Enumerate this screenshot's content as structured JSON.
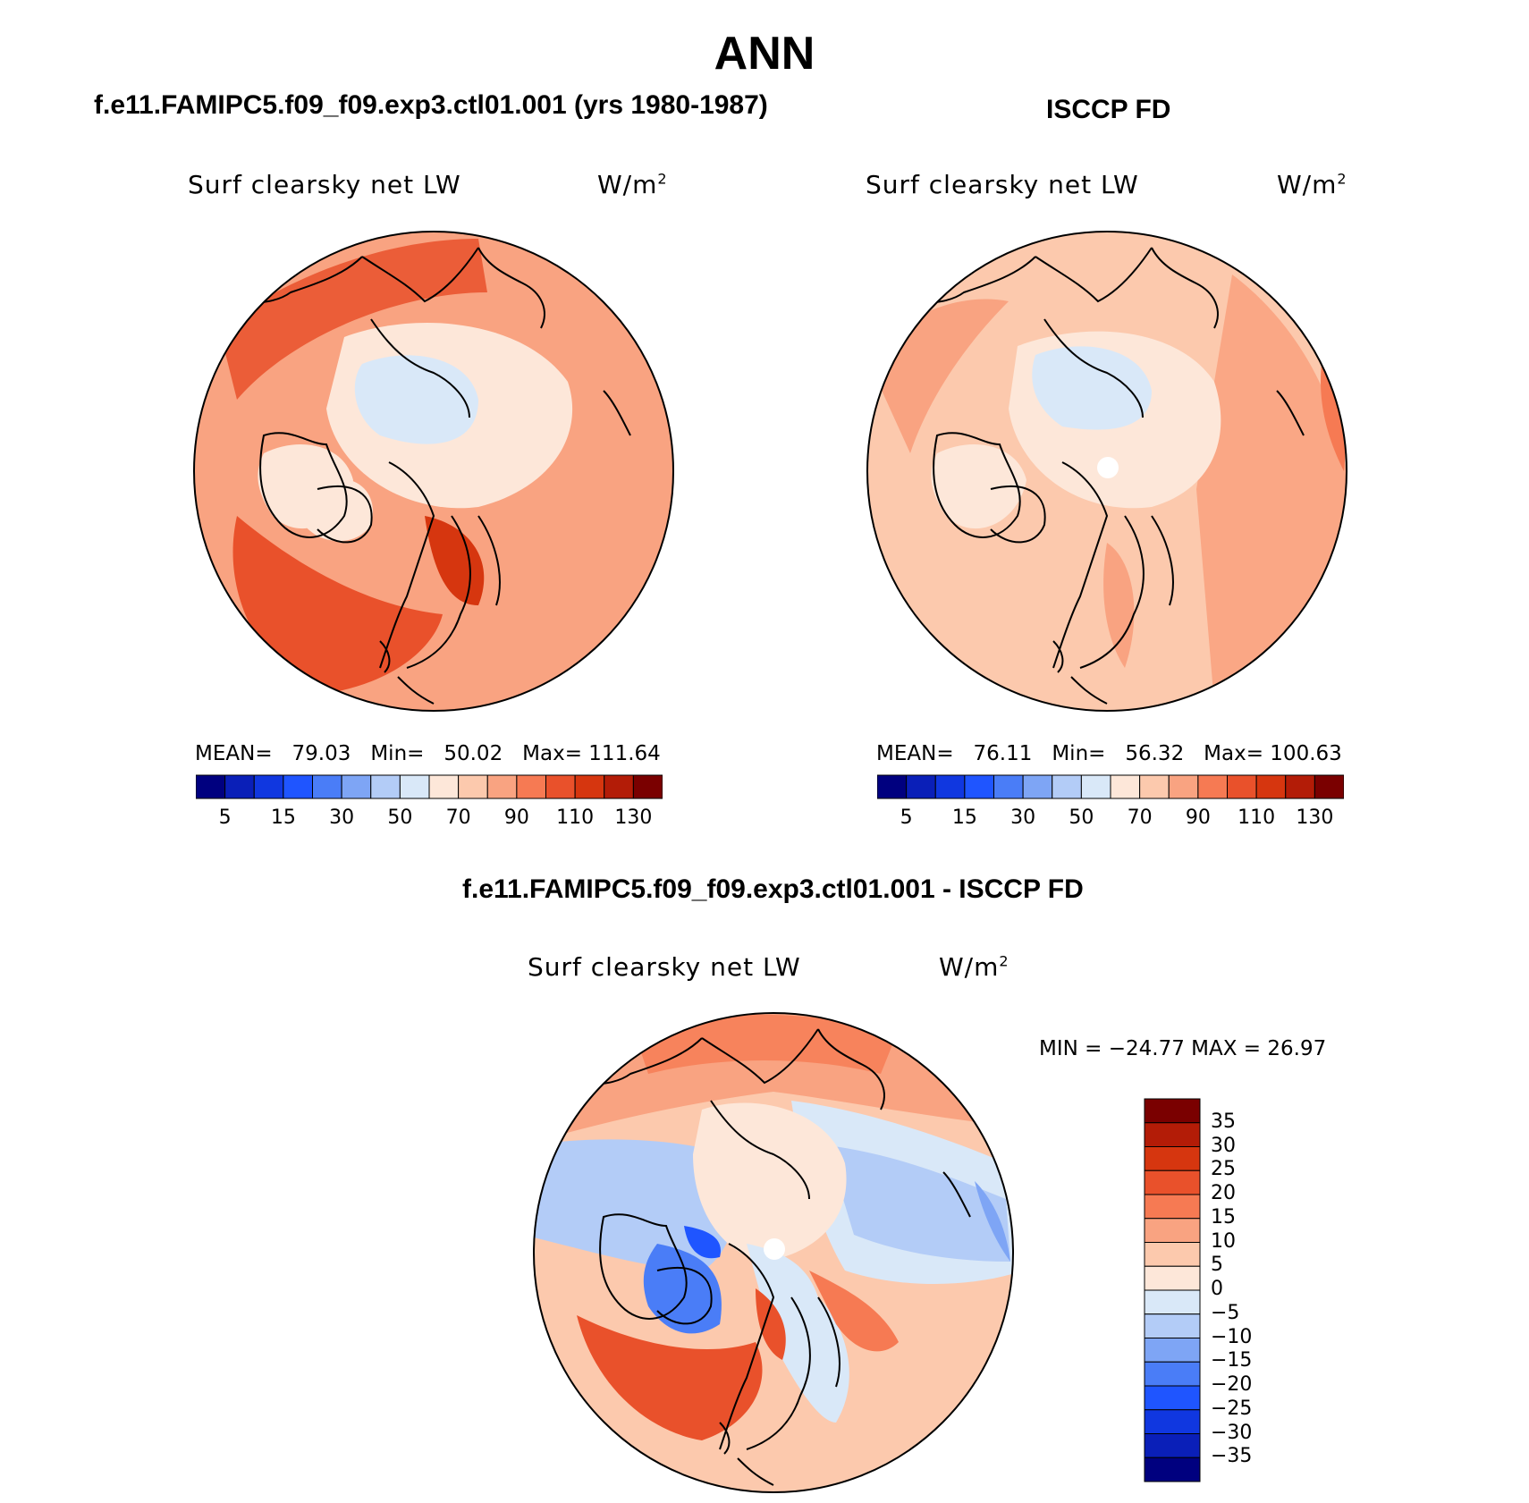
{
  "title": "ANN",
  "colors": {
    "abs_scale": [
      "#00007f",
      "#0a1fb8",
      "#1037e0",
      "#1f55ff",
      "#4a7df7",
      "#7ea5f5",
      "#b3ccf7",
      "#d9e8f8",
      "#fde7d9",
      "#fcc9ad",
      "#f9a381",
      "#f67a53",
      "#e9512b",
      "#d6360f",
      "#b31c07",
      "#7a0000"
    ],
    "diff_scale": [
      "#00007f",
      "#0a1fb8",
      "#1037e0",
      "#1f55ff",
      "#4a7df7",
      "#7ea5f5",
      "#b3ccf7",
      "#d9e8f8",
      "#fde7d9",
      "#fcc9ad",
      "#f9a381",
      "#f67a53",
      "#e9512b",
      "#d6360f",
      "#b31c07",
      "#7a0000"
    ]
  },
  "panel_model": {
    "case_title": "f.e11.FAMIPC5.f09_f09.exp3.ctl01.001 (yrs 1980-1987)",
    "variable": "Surf clearsky net LW",
    "units": "W/m",
    "units_exp": "2",
    "mean_label": "MEAN=",
    "mean": "79.03",
    "min_label": "Min=",
    "min": "50.02",
    "max_label": "Max=",
    "max": "111.64"
  },
  "panel_obs": {
    "case_title": "ISCCP FD",
    "variable": "Surf clearsky net LW",
    "units": "W/m",
    "units_exp": "2",
    "mean_label": "MEAN=",
    "mean": "76.11",
    "min_label": "Min=",
    "min": "56.32",
    "max_label": "Max=",
    "max": "100.63"
  },
  "abs_colorbar_ticks": [
    "5",
    "15",
    "30",
    "50",
    "70",
    "90",
    "110",
    "130"
  ],
  "panel_diff": {
    "case_title": "f.e11.FAMIPC5.f09_f09.exp3.ctl01.001 - ISCCP FD",
    "variable": "Surf clearsky net LW",
    "units": "W/m",
    "units_exp": "2",
    "minmax": "MIN = −24.77 MAX =  26.97"
  },
  "diff_colorbar_ticks": [
    "35",
    "30",
    "25",
    "20",
    "15",
    "10",
    "5",
    "0",
    "−5",
    "−10",
    "−15",
    "−20",
    "−25",
    "−30",
    "−35"
  ]
}
